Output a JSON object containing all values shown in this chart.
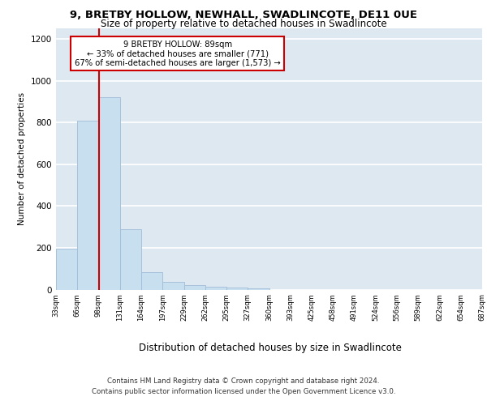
{
  "title": "9, BRETBY HOLLOW, NEWHALL, SWADLINCOTE, DE11 0UE",
  "subtitle": "Size of property relative to detached houses in Swadlincote",
  "xlabel": "Distribution of detached houses by size in Swadlincote",
  "ylabel": "Number of detached properties",
  "footer_line1": "Contains HM Land Registry data © Crown copyright and database right 2024.",
  "footer_line2": "Contains public sector information licensed under the Open Government Licence v3.0.",
  "annotation_line1": "9 BRETBY HOLLOW: 89sqm",
  "annotation_line2": "← 33% of detached houses are smaller (771)",
  "annotation_line3": "67% of semi-detached houses are larger (1,573) →",
  "bar_values": [
    195,
    810,
    920,
    290,
    85,
    35,
    20,
    15,
    10,
    5,
    0,
    0,
    0,
    0,
    0,
    0,
    0,
    0,
    0,
    0
  ],
  "bin_labels": [
    "33sqm",
    "66sqm",
    "98sqm",
    "131sqm",
    "164sqm",
    "197sqm",
    "229sqm",
    "262sqm",
    "295sqm",
    "327sqm",
    "360sqm",
    "393sqm",
    "425sqm",
    "458sqm",
    "491sqm",
    "524sqm",
    "556sqm",
    "589sqm",
    "622sqm",
    "654sqm",
    "687sqm"
  ],
  "bar_color": "#c8dff0",
  "bar_edge_color": "#a0bcd8",
  "bg_color": "#dde8f0",
  "grid_color": "#ffffff",
  "annotation_box_color": "white",
  "annotation_box_edge": "#cc0000",
  "red_line_x": 1.5,
  "ylim": [
    0,
    1250
  ],
  "yticks": [
    0,
    200,
    400,
    600,
    800,
    1000,
    1200
  ]
}
